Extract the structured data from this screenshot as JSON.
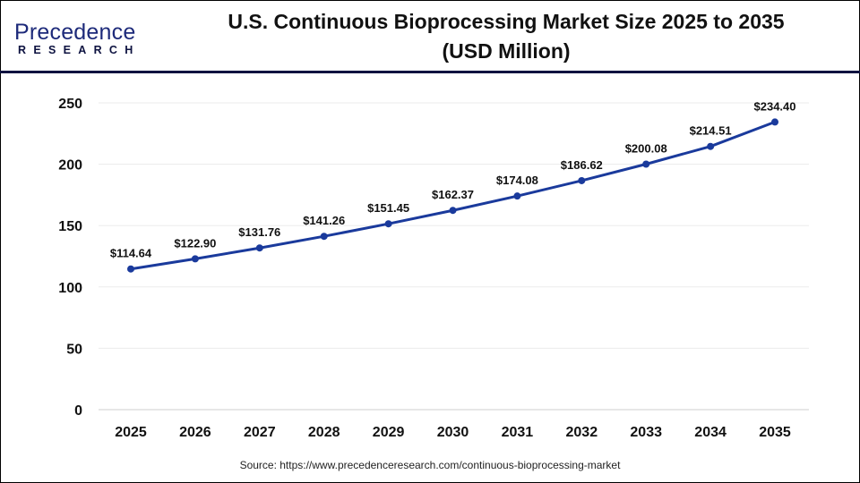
{
  "logo": {
    "brand": "Precedence",
    "sub": "RESEARCH"
  },
  "header": {
    "title_line1": "U.S. Continuous Bioprocessing Market Size 2025 to 2035",
    "title_line2": "(USD Million)"
  },
  "source": "Source: https://www.precedenceresearch.com/continuous-bioprocessing-market",
  "colors": {
    "line": "#1a3a9c",
    "header_rule": "#0d1240",
    "grid": "#ebebeb"
  },
  "chart_data": {
    "type": "line",
    "title": "U.S. Continuous Bioprocessing Market Size 2025 to 2035 (USD Million)",
    "xlabel": "",
    "ylabel": "",
    "ylim": [
      0,
      250
    ],
    "yticks": [
      0,
      50,
      100,
      150,
      200,
      250
    ],
    "grid": true,
    "categories": [
      "2025",
      "2026",
      "2027",
      "2028",
      "2029",
      "2030",
      "2031",
      "2032",
      "2033",
      "2034",
      "2035"
    ],
    "values": [
      114.64,
      122.9,
      131.76,
      141.26,
      151.45,
      162.37,
      174.08,
      186.62,
      200.08,
      214.51,
      234.4
    ],
    "data_labels": [
      "$114.64",
      "$122.90",
      "$131.76",
      "$141.26",
      "$151.45",
      "$162.37",
      "$174.08",
      "$186.62",
      "$200.08",
      "$214.51",
      "$234.40"
    ]
  }
}
